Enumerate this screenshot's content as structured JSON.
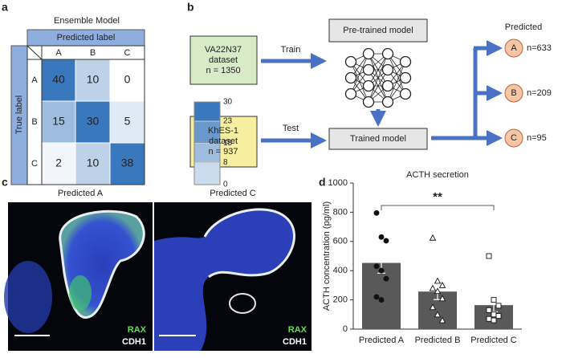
{
  "panel_labels": [
    "a",
    "b",
    "c",
    "d"
  ],
  "confusion": {
    "title": "Ensemble Model",
    "column_header": "Predicted label",
    "row_header": "True label",
    "columns": [
      "A",
      "B",
      "C"
    ],
    "rows": [
      "A",
      "B",
      "C"
    ],
    "matrix": [
      [
        40,
        10,
        0
      ],
      [
        15,
        30,
        5
      ],
      [
        2,
        10,
        38
      ]
    ],
    "colorbar_ticks": [
      30,
      23,
      15,
      8,
      0
    ],
    "color": "#3a78bd"
  },
  "workflow": {
    "train_data": [
      "VA22N37",
      "dataset",
      "n = 1350"
    ],
    "test_data": [
      "KhES-1",
      "dataset",
      "n = 937"
    ],
    "train_label": "Train",
    "test_label": "Test",
    "pretrained": "Pre-trained model",
    "trained": "Trained model",
    "predicted_title": "Predicted",
    "outputs": [
      {
        "class": "A",
        "count": "n=633"
      },
      {
        "class": "B",
        "count": "n=209"
      },
      {
        "class": "C",
        "count": "n=95"
      }
    ]
  },
  "images": {
    "titles": [
      "Predicted A",
      "Predicted C"
    ],
    "stains": [
      "RAX",
      "CDH1"
    ]
  },
  "chart_data": {
    "type": "bar",
    "title": "ACTH secretion",
    "ylabel": "ACTH concentration (pg/ml)",
    "categories": [
      "Predicted A",
      "Predicted B",
      "Predicted C"
    ],
    "values": [
      453,
      257,
      164
    ],
    "errors": [
      70,
      55,
      45
    ],
    "points": [
      [
        795,
        630,
        605,
        430,
        400,
        345,
        220,
        200
      ],
      [
        625,
        330,
        300,
        280,
        260,
        210,
        150,
        100,
        60
      ],
      [
        500,
        200,
        160,
        130,
        100,
        90,
        70,
        60
      ]
    ],
    "markers": [
      "circle",
      "triangle",
      "square"
    ],
    "color": "#595959",
    "ylim": [
      0,
      1000
    ],
    "yticks": [
      0,
      200,
      400,
      600,
      800,
      1000
    ],
    "annotation": "**"
  }
}
